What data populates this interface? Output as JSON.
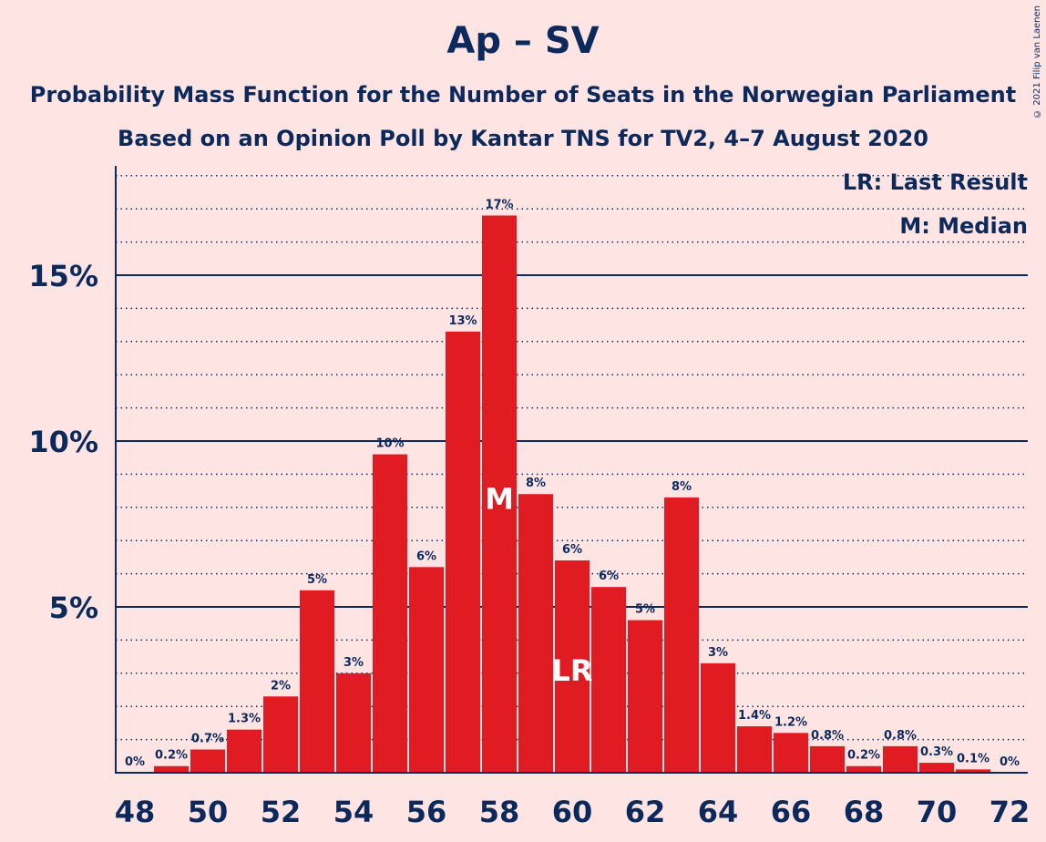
{
  "chart_data": {
    "type": "bar",
    "title": "Ap – SV",
    "subtitle1": "Probability Mass Function for the Number of Seats in the Norwegian Parliament",
    "subtitle2": "Based on an Opinion Poll by Kantar TNS for TV2, 4–7 August 2020",
    "copyright": "© 2021 Filip van Laenen",
    "legend": {
      "lr": "LR: Last Result",
      "m": "M: Median"
    },
    "x": [
      48,
      49,
      50,
      51,
      52,
      53,
      54,
      55,
      56,
      57,
      58,
      59,
      60,
      61,
      62,
      63,
      64,
      65,
      66,
      67,
      68,
      69,
      70,
      71,
      72
    ],
    "values": [
      0.0,
      0.2,
      0.7,
      1.3,
      2.3,
      5.5,
      3.0,
      9.6,
      6.2,
      13.3,
      16.8,
      8.4,
      6.4,
      5.6,
      4.6,
      8.3,
      3.3,
      1.4,
      1.2,
      0.8,
      0.2,
      0.8,
      0.3,
      0.1,
      0.0
    ],
    "labels": [
      "0%",
      "0.2%",
      "0.7%",
      "1.3%",
      "2%",
      "5%",
      "3%",
      "10%",
      "6%",
      "13%",
      "17%",
      "8%",
      "6%",
      "6%",
      "5%",
      "8%",
      "3%",
      "1.4%",
      "1.2%",
      "0.8%",
      "0.2%",
      "0.8%",
      "0.3%",
      "0.1%",
      "0%"
    ],
    "x_ticks": [
      48,
      50,
      52,
      54,
      56,
      58,
      60,
      62,
      64,
      66,
      68,
      70,
      72
    ],
    "y_ticks": [
      {
        "value": 5,
        "label": "5%"
      },
      {
        "value": 10,
        "label": "10%"
      },
      {
        "value": 15,
        "label": "15%"
      }
    ],
    "ylim": [
      0,
      18.3
    ],
    "median": 58,
    "median_marker": "M",
    "last_result": 60,
    "last_result_marker": "LR",
    "colors": {
      "bar": "#e01b22",
      "axis": "#0b2a5b",
      "background": "#ffe4e4"
    }
  }
}
